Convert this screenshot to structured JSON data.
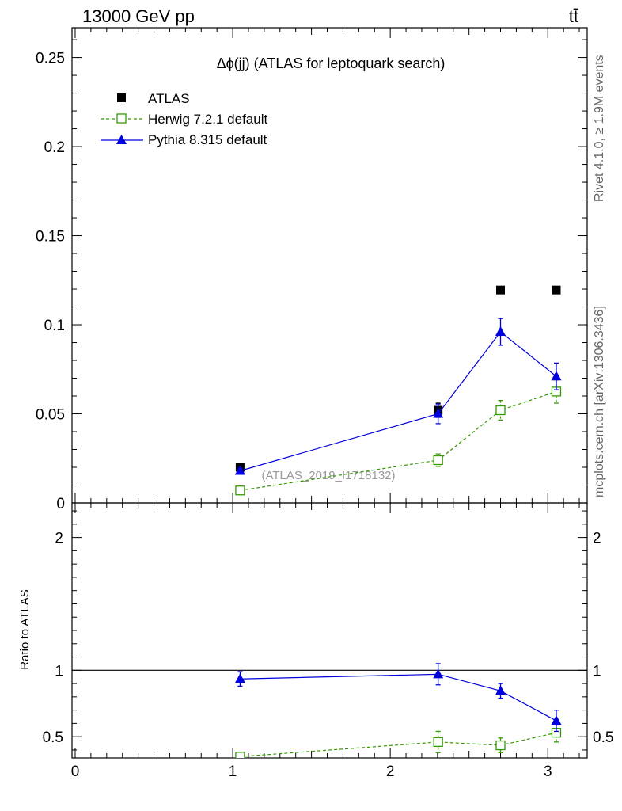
{
  "header": {
    "left": "13000 GeV pp",
    "right": "tt̄"
  },
  "side_text": {
    "rivet": "Rivet 4.1.0, ≥ 1.9M events",
    "mcplots": "mcplots.cern.ch [arXiv:1306.3436]"
  },
  "chart_data": [
    {
      "panel": "main",
      "type": "scatter",
      "title": "Δϕ(jj) (ATLAS for leptoquark search)",
      "watermark": "(ATLAS_2019_I1718132)",
      "xlabel": "",
      "ylabel": "",
      "xlim": [
        -0.02,
        3.25
      ],
      "ylim": [
        0,
        0.2667
      ],
      "x_ticks": [
        "0",
        "1",
        "2",
        "3"
      ],
      "y_ticks": [
        "0",
        "0.05",
        "0.1",
        "0.15",
        "0.2",
        "0.25"
      ],
      "legend_position": "top-left",
      "series": [
        {
          "name": "ATLAS",
          "marker": "filled-square",
          "color": "#000000",
          "x": [
            1.047,
            2.304,
            2.7,
            3.054
          ],
          "y": [
            0.02,
            0.052,
            0.1195,
            0.1195
          ],
          "err": [
            0.002,
            0.004,
            0.002,
            0.002
          ]
        },
        {
          "name": "Herwig 7.2.1 default",
          "marker": "open-square",
          "line": "dashed",
          "color": "#339900",
          "x": [
            1.047,
            2.304,
            2.7,
            3.054
          ],
          "y": [
            0.007,
            0.024,
            0.052,
            0.0625
          ],
          "err": [
            0.001,
            0.0035,
            0.0055,
            0.0065
          ]
        },
        {
          "name": "Pythia 8.315 default",
          "marker": "filled-triangle",
          "line": "solid",
          "color": "#0000dd",
          "x": [
            1.047,
            2.304,
            2.7,
            3.054
          ],
          "y": [
            0.018,
            0.05,
            0.096,
            0.071
          ],
          "err": [
            0.0015,
            0.0055,
            0.0075,
            0.0075
          ]
        }
      ]
    },
    {
      "panel": "ratio",
      "type": "scatter",
      "ylabel": "Ratio to ATLAS",
      "xlim": [
        -0.02,
        3.25
      ],
      "ylim": [
        0.34,
        2.26
      ],
      "reference_line": 1,
      "x_ticks": [
        "0",
        "1",
        "2",
        "3"
      ],
      "y_ticks": [
        "0.5",
        "1",
        "2"
      ],
      "series": [
        {
          "name": "Herwig 7.2.1 default",
          "color": "#339900",
          "line": "dashed",
          "x": [
            1.047,
            2.304,
            2.7,
            3.054
          ],
          "y": [
            0.35,
            0.46,
            0.435,
            0.53
          ],
          "err": [
            0.0,
            0.08,
            0.055,
            0.07
          ]
        },
        {
          "name": "Pythia 8.315 default",
          "color": "#0000dd",
          "line": "solid",
          "x": [
            1.047,
            2.304,
            2.7,
            3.054
          ],
          "y": [
            0.935,
            0.97,
            0.845,
            0.62
          ],
          "err": [
            0.055,
            0.08,
            0.055,
            0.08
          ]
        }
      ]
    }
  ]
}
